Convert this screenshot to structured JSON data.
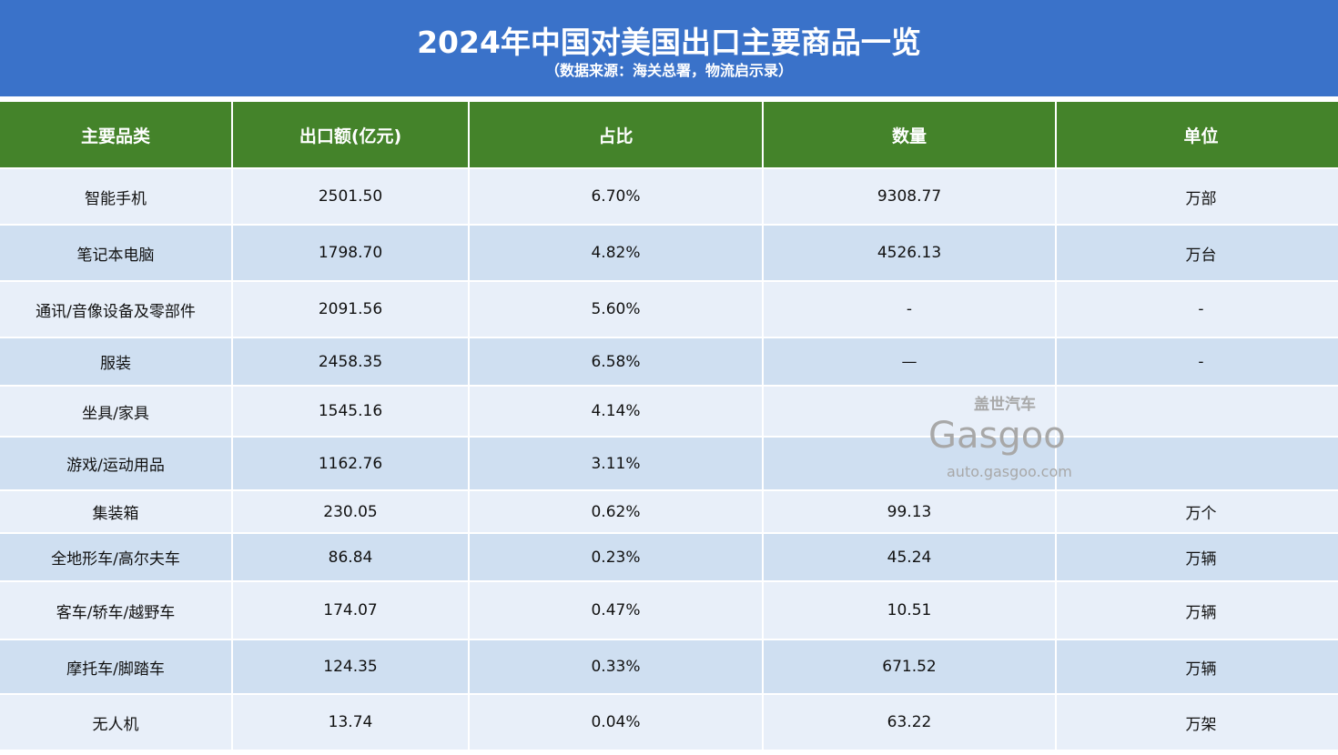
{
  "header": {
    "title": "2024年中国对美国出口主要商品一览",
    "subtitle": "（数据来源：海关总署，物流启示录）"
  },
  "table": {
    "columns": [
      "主要品类",
      "出口额(亿元)",
      "占比",
      "数量",
      "单位"
    ],
    "rows": [
      [
        "智能手机",
        "2501.50",
        "6.70%",
        "9308.77",
        "万部"
      ],
      [
        "笔记本电脑",
        "1798.70",
        "4.82%",
        "4526.13",
        "万台"
      ],
      [
        "通讯/音像设备及零部件",
        "2091.56",
        "5.60%",
        "-",
        "-"
      ],
      [
        "服装",
        "2458.35",
        "6.58%",
        "—",
        "-"
      ],
      [
        "坐具/家具",
        "1545.16",
        "4.14%",
        "",
        ""
      ],
      [
        "游戏/运动用品",
        "1162.76",
        "3.11%",
        "",
        ""
      ],
      [
        "集装箱",
        "230.05",
        "0.62%",
        "99.13",
        "万个"
      ],
      [
        "全地形车/高尔夫车",
        "86.84",
        "0.23%",
        "45.24",
        "万辆"
      ],
      [
        "客车/轿车/越野车",
        "174.07",
        "0.47%",
        "10.51",
        "万辆"
      ],
      [
        "摩托车/脚踏车",
        "124.35",
        "0.33%",
        "671.52",
        "万辆"
      ],
      [
        "无人机",
        "13.74",
        "0.04%",
        "63.22",
        "万架"
      ]
    ]
  },
  "watermark": {
    "brand_cn": "盖世汽车",
    "brand": "Gasgoo",
    "url": "auto.gasgoo.com"
  },
  "colors": {
    "banner": "#3a72c9",
    "header_row": "#44832a",
    "row_light": "#e8eff9",
    "row_dark": "#cfdff1"
  }
}
